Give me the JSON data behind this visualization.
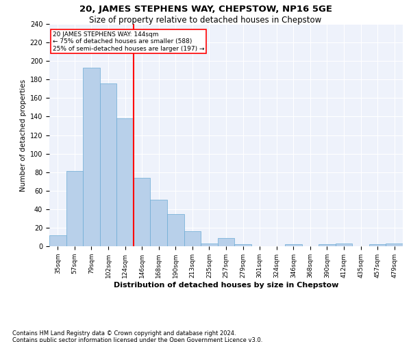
{
  "title": "20, JAMES STEPHENS WAY, CHEPSTOW, NP16 5GE",
  "subtitle": "Size of property relative to detached houses in Chepstow",
  "xlabel": "Distribution of detached houses by size in Chepstow",
  "ylabel": "Number of detached properties",
  "categories": [
    "35sqm",
    "57sqm",
    "79sqm",
    "102sqm",
    "124sqm",
    "146sqm",
    "168sqm",
    "190sqm",
    "213sqm",
    "235sqm",
    "257sqm",
    "279sqm",
    "301sqm",
    "324sqm",
    "346sqm",
    "368sqm",
    "390sqm",
    "412sqm",
    "435sqm",
    "457sqm",
    "479sqm"
  ],
  "values": [
    12,
    81,
    193,
    176,
    138,
    74,
    50,
    35,
    16,
    3,
    9,
    2,
    0,
    0,
    2,
    0,
    2,
    3,
    0,
    2,
    3
  ],
  "bar_color": "#b8d0ea",
  "bar_edgecolor": "#6aaad4",
  "vline_index": 5,
  "vline_color": "red",
  "annotation_box_edgecolor": "red",
  "marker_label_line1": "20 JAMES STEPHENS WAY: 144sqm",
  "marker_label_line2": "← 75% of detached houses are smaller (588)",
  "marker_label_line3": "25% of semi-detached houses are larger (197) →",
  "ylim": [
    0,
    240
  ],
  "yticks": [
    0,
    20,
    40,
    60,
    80,
    100,
    120,
    140,
    160,
    180,
    200,
    220,
    240
  ],
  "bg_color": "#eef2fb",
  "grid_color": "#ffffff",
  "footnote1": "Contains HM Land Registry data © Crown copyright and database right 2024.",
  "footnote2": "Contains public sector information licensed under the Open Government Licence v3.0."
}
